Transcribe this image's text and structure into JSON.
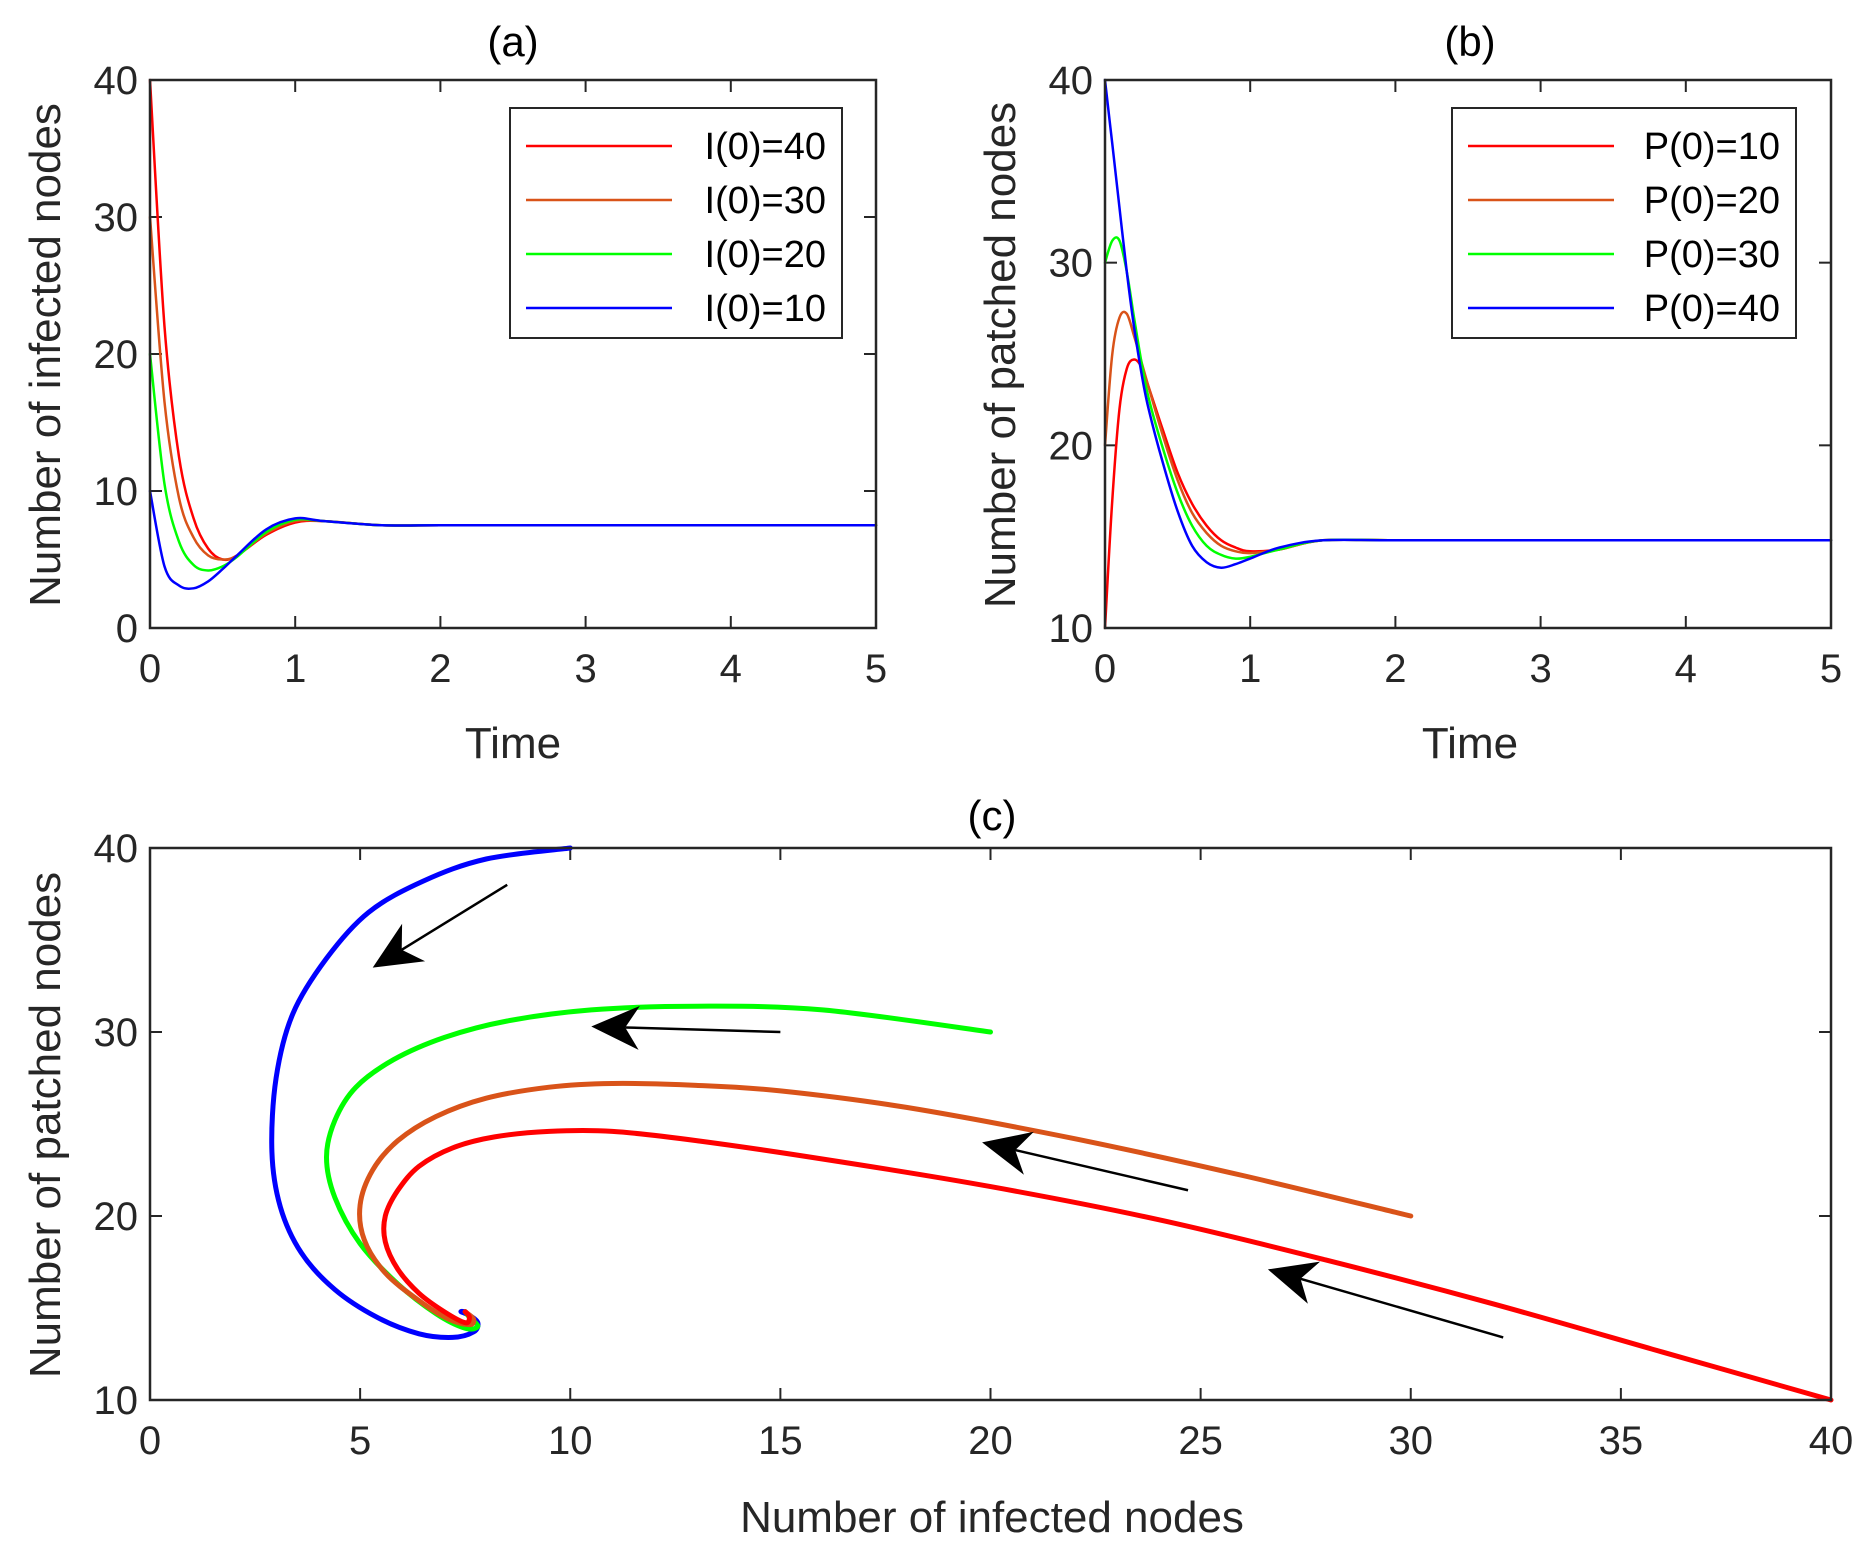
{
  "chart_data": [
    {
      "id": "a",
      "type": "line",
      "title": "(a)",
      "xlabel": "Time",
      "ylabel": "Number of infected nodes",
      "xlim": [
        0,
        5
      ],
      "ylim": [
        0,
        40
      ],
      "xticks": [
        "0",
        "1",
        "2",
        "3",
        "4",
        "5"
      ],
      "yticks": [
        "0",
        "10",
        "20",
        "30",
        "40"
      ],
      "legend_position": "top-right",
      "series": [
        {
          "name": "I(0)=40",
          "color": "#ff0000",
          "x": [
            0,
            0.1,
            0.2,
            0.3,
            0.4,
            0.5,
            0.6,
            0.8,
            1.0,
            1.2,
            1.6,
            2,
            3,
            4,
            5
          ],
          "y": [
            40,
            22,
            12.5,
            8,
            5.8,
            5,
            5.3,
            6.8,
            7.7,
            7.8,
            7.5,
            7.5,
            7.5,
            7.5,
            7.5
          ]
        },
        {
          "name": "I(0)=30",
          "color": "#d95319",
          "x": [
            0,
            0.1,
            0.2,
            0.3,
            0.4,
            0.5,
            0.6,
            0.8,
            1.0,
            1.2,
            1.6,
            2,
            3,
            4,
            5
          ],
          "y": [
            30,
            16.5,
            9.5,
            6.6,
            5.3,
            5,
            5.3,
            6.9,
            7.8,
            7.8,
            7.5,
            7.5,
            7.5,
            7.5,
            7.5
          ]
        },
        {
          "name": "I(0)=20",
          "color": "#00ff00",
          "x": [
            0,
            0.1,
            0.2,
            0.3,
            0.4,
            0.5,
            0.6,
            0.8,
            1.0,
            1.2,
            1.6,
            2,
            3,
            4,
            5
          ],
          "y": [
            20,
            10.5,
            6.3,
            4.6,
            4.2,
            4.5,
            5.2,
            7,
            7.9,
            7.8,
            7.5,
            7.5,
            7.5,
            7.5,
            7.5
          ]
        },
        {
          "name": "I(0)=10",
          "color": "#0000ff",
          "x": [
            0,
            0.1,
            0.2,
            0.3,
            0.4,
            0.5,
            0.6,
            0.8,
            1.0,
            1.2,
            1.6,
            2,
            3,
            4,
            5
          ],
          "y": [
            10,
            4.5,
            3.1,
            2.9,
            3.4,
            4.3,
            5.3,
            7.2,
            8,
            7.8,
            7.5,
            7.5,
            7.5,
            7.5,
            7.5
          ]
        }
      ]
    },
    {
      "id": "b",
      "type": "line",
      "title": "(b)",
      "xlabel": "Time",
      "ylabel": "Number of patched nodes",
      "xlim": [
        0,
        5
      ],
      "ylim": [
        10,
        40
      ],
      "xticks": [
        "0",
        "1",
        "2",
        "3",
        "4",
        "5"
      ],
      "yticks": [
        "10",
        "20",
        "30",
        "40"
      ],
      "legend_position": "top-right",
      "series": [
        {
          "name": "P(0)=10",
          "color": "#ff0000",
          "x": [
            0,
            0.05,
            0.1,
            0.15,
            0.2,
            0.25,
            0.3,
            0.4,
            0.5,
            0.6,
            0.7,
            0.8,
            0.9,
            1.0,
            1.2,
            1.5,
            2,
            3,
            4,
            5
          ],
          "y": [
            10,
            17,
            22,
            24.2,
            24.7,
            24.3,
            23.2,
            20.8,
            18.5,
            16.8,
            15.6,
            14.8,
            14.4,
            14.2,
            14.3,
            14.8,
            14.8,
            14.8,
            14.8,
            14.8
          ]
        },
        {
          "name": "P(0)=20",
          "color": "#d95319",
          "x": [
            0,
            0.05,
            0.1,
            0.15,
            0.2,
            0.25,
            0.3,
            0.4,
            0.5,
            0.6,
            0.7,
            0.8,
            0.9,
            1.0,
            1.2,
            1.5,
            2,
            3,
            4,
            5
          ],
          "y": [
            20,
            25,
            27,
            27.2,
            26,
            24.6,
            23.2,
            20.5,
            18.1,
            16.3,
            15.2,
            14.5,
            14.2,
            14.1,
            14.3,
            14.8,
            14.8,
            14.8,
            14.8,
            14.8
          ]
        },
        {
          "name": "P(0)=30",
          "color": "#00ff00",
          "x": [
            0,
            0.05,
            0.1,
            0.15,
            0.2,
            0.25,
            0.3,
            0.4,
            0.5,
            0.6,
            0.7,
            0.8,
            0.9,
            1.0,
            1.2,
            1.5,
            2,
            3,
            4,
            5
          ],
          "y": [
            30,
            31.2,
            31.2,
            29.5,
            27,
            24.6,
            22.6,
            19.8,
            17.4,
            15.6,
            14.5,
            14,
            13.8,
            13.9,
            14.3,
            14.8,
            14.8,
            14.8,
            14.8,
            14.8
          ]
        },
        {
          "name": "P(0)=40",
          "color": "#0000ff",
          "x": [
            0,
            0.05,
            0.1,
            0.15,
            0.2,
            0.25,
            0.3,
            0.4,
            0.5,
            0.6,
            0.7,
            0.8,
            0.9,
            1.0,
            1.2,
            1.5,
            2,
            3,
            4,
            5
          ],
          "y": [
            40,
            36.5,
            33,
            29.5,
            26.5,
            24,
            22,
            19,
            16.4,
            14.5,
            13.6,
            13.3,
            13.5,
            13.8,
            14.4,
            14.8,
            14.8,
            14.8,
            14.8,
            14.8
          ]
        }
      ]
    },
    {
      "id": "c",
      "type": "line",
      "title": "(c)",
      "xlabel": "Number of infected nodes",
      "ylabel": "Number of patched nodes",
      "xlim": [
        0,
        40
      ],
      "ylim": [
        10,
        40
      ],
      "xticks": [
        "0",
        "5",
        "10",
        "15",
        "20",
        "25",
        "30",
        "35",
        "40"
      ],
      "yticks": [
        "10",
        "20",
        "30",
        "40"
      ],
      "series": [
        {
          "color": "#0000ff",
          "x": [
            10,
            8,
            6.5,
            5.2,
            4.2,
            3.4,
            3.0,
            2.9,
            3.1,
            3.6,
            4.4,
            5.4,
            6.4,
            7.2,
            7.7,
            7.8,
            7.6,
            7.4,
            7.5
          ],
          "y": [
            40,
            39.4,
            38.2,
            36.5,
            34,
            31,
            27.5,
            23.5,
            20.5,
            18,
            16,
            14.5,
            13.6,
            13.4,
            13.7,
            14.2,
            14.6,
            14.8,
            14.8
          ]
        },
        {
          "color": "#00ff00",
          "x": [
            20,
            16,
            13,
            10.5,
            8.5,
            7,
            5.8,
            4.9,
            4.4,
            4.2,
            4.4,
            5,
            5.9,
            6.8,
            7.5,
            7.8,
            7.6,
            7.5
          ],
          "y": [
            30,
            31.2,
            31.4,
            31.2,
            30.6,
            29.7,
            28.5,
            27,
            25.2,
            23.2,
            21,
            18.5,
            16.3,
            14.7,
            13.9,
            14,
            14.5,
            14.8
          ]
        },
        {
          "color": "#d95319",
          "x": [
            30,
            26,
            22,
            18,
            15,
            13,
            11,
            9.5,
            8,
            6.8,
            5.9,
            5.3,
            5.0,
            5.1,
            5.6,
            6.4,
            7.1,
            7.6,
            7.7,
            7.5
          ],
          "y": [
            20,
            22.2,
            24.2,
            25.9,
            26.8,
            27.1,
            27.2,
            27.0,
            26.4,
            25.4,
            24.1,
            22.5,
            20.6,
            18.7,
            16.9,
            15.4,
            14.4,
            14.1,
            14.4,
            14.8
          ]
        },
        {
          "color": "#ff0000",
          "x": [
            40,
            36,
            32,
            28,
            24,
            20,
            16,
            13,
            11,
            9.5,
            8.2,
            7.2,
            6.4,
            5.9,
            5.6,
            5.6,
            5.9,
            6.4,
            7.0,
            7.5,
            7.6,
            7.5
          ],
          "y": [
            10,
            12.6,
            15.2,
            17.6,
            19.8,
            21.6,
            23.1,
            24.1,
            24.6,
            24.6,
            24.3,
            23.7,
            22.7,
            21.4,
            20.0,
            18.6,
            17.1,
            15.8,
            14.8,
            14.2,
            14.5,
            14.8
          ]
        }
      ],
      "arrows": [
        {
          "from": [
            8.5,
            38
          ],
          "to": [
            5.3,
            33.5
          ]
        },
        {
          "from": [
            15,
            30.0
          ],
          "to": [
            10.5,
            30.3
          ]
        },
        {
          "from": [
            24.7,
            21.4
          ],
          "to": [
            19.8,
            24.0
          ]
        },
        {
          "from": [
            32.2,
            13.4
          ],
          "to": [
            26.6,
            17.1
          ]
        }
      ]
    }
  ]
}
